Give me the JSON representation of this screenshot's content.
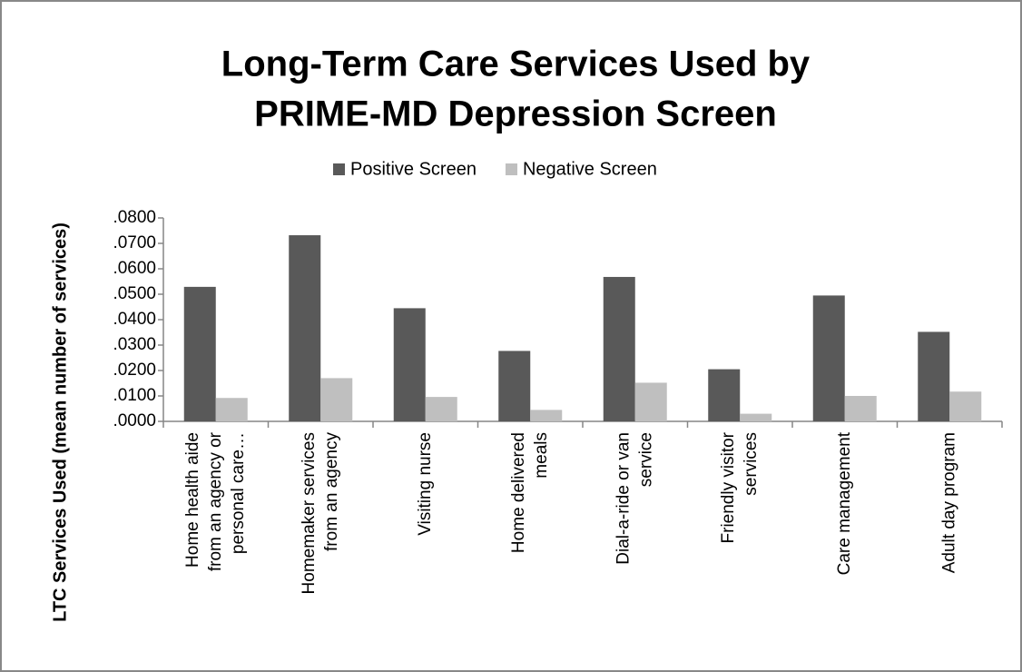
{
  "chart_data": {
    "type": "bar",
    "title": "Long-Term Care Services Used by PRIME-MD Depression Screen",
    "y_label": "LTC Services Used (mean number of services)",
    "categories": [
      "Home health aide from an agency or personal care…",
      "Homemaker services from an agency",
      "Visiting nurse",
      "Home delivered meals",
      "Dial-a-ride or van service",
      "Friendly visitor services",
      "Care management",
      "Adult day program"
    ],
    "series": [
      {
        "name": "Positive Screen",
        "color": "#595959",
        "values": [
          0.0529,
          0.0732,
          0.0445,
          0.0277,
          0.0568,
          0.0205,
          0.0495,
          0.0352
        ]
      },
      {
        "name": "Negative Screen",
        "color": "#bfbfbf",
        "values": [
          0.0092,
          0.017,
          0.0096,
          0.0045,
          0.0152,
          0.003,
          0.01,
          0.0117
        ]
      }
    ],
    "ylim": [
      0,
      0.08
    ],
    "yticks": [
      {
        "value": 0,
        "label": ".0000"
      },
      {
        "value": 0.01,
        "label": ".0100"
      },
      {
        "value": 0.02,
        "label": ".0200"
      },
      {
        "value": 0.03,
        "label": ".0300"
      },
      {
        "value": 0.04,
        "label": ".0400"
      },
      {
        "value": 0.05,
        "label": ".0500"
      },
      {
        "value": 0.06,
        "label": ".0600"
      },
      {
        "value": 0.07,
        "label": ".0700"
      },
      {
        "value": 0.08,
        "label": ".0800"
      }
    ],
    "legend": "top",
    "grid": false
  }
}
